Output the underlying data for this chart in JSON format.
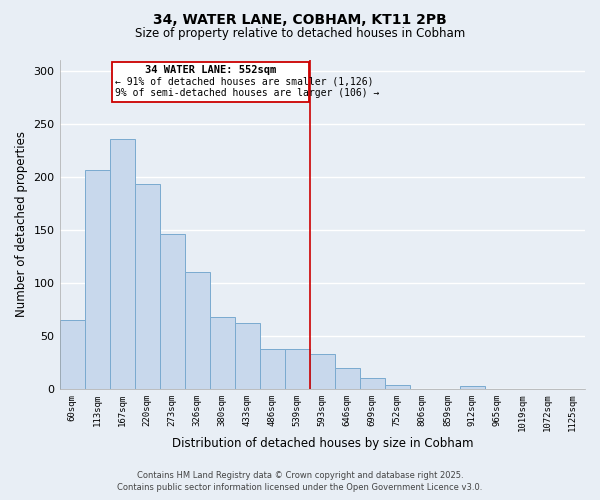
{
  "title": "34, WATER LANE, COBHAM, KT11 2PB",
  "subtitle": "Size of property relative to detached houses in Cobham",
  "xlabel": "Distribution of detached houses by size in Cobham",
  "ylabel": "Number of detached properties",
  "bar_color": "#c8d8ec",
  "bar_edge_color": "#7aaacf",
  "categories": [
    "60sqm",
    "113sqm",
    "167sqm",
    "220sqm",
    "273sqm",
    "326sqm",
    "380sqm",
    "433sqm",
    "486sqm",
    "539sqm",
    "593sqm",
    "646sqm",
    "699sqm",
    "752sqm",
    "806sqm",
    "859sqm",
    "912sqm",
    "965sqm",
    "1019sqm",
    "1072sqm",
    "1125sqm"
  ],
  "values": [
    65,
    206,
    236,
    193,
    146,
    110,
    68,
    62,
    38,
    38,
    33,
    20,
    10,
    4,
    0,
    0,
    3,
    0,
    0,
    0,
    0
  ],
  "property_line_x": 9.5,
  "property_label": "34 WATER LANE: 552sqm",
  "annotation_line1": "← 91% of detached houses are smaller (1,126)",
  "annotation_line2": "9% of semi-detached houses are larger (106) →",
  "ylim": [
    0,
    310
  ],
  "yticks": [
    0,
    50,
    100,
    150,
    200,
    250,
    300
  ],
  "line_color": "#cc0000",
  "box_edge_color": "#cc0000",
  "background_color": "#e8eef5",
  "grid_color": "#ffffff",
  "footer_line1": "Contains HM Land Registry data © Crown copyright and database right 2025.",
  "footer_line2": "Contains public sector information licensed under the Open Government Licence v3.0."
}
